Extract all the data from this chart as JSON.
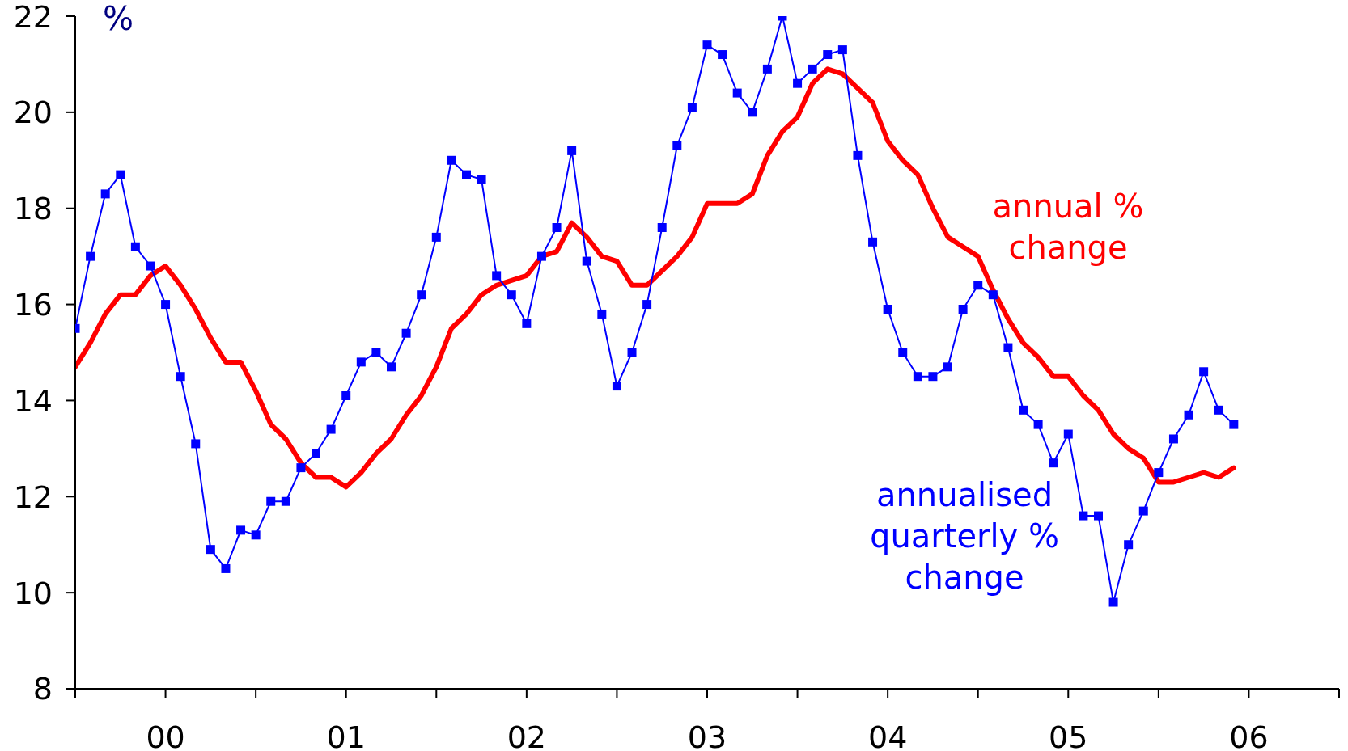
{
  "chart_data": {
    "type": "line",
    "ylabel": "%",
    "x": [
      "2000-01",
      "2000-02",
      "2000-03",
      "2000-04",
      "2000-05",
      "2000-06",
      "2000-07",
      "2000-08",
      "2000-09",
      "2000-10",
      "2000-11",
      "2000-12",
      "2001-01",
      "2001-02",
      "2001-03",
      "2001-04",
      "2001-05",
      "2001-06",
      "2001-07",
      "2001-08",
      "2001-09",
      "2001-10",
      "2001-11",
      "2001-12",
      "2002-01",
      "2002-02",
      "2002-03",
      "2002-04",
      "2002-05",
      "2002-06",
      "2002-07",
      "2002-08",
      "2002-09",
      "2002-10",
      "2002-11",
      "2002-12",
      "2003-01",
      "2003-02",
      "2003-03",
      "2003-04",
      "2003-05",
      "2003-06",
      "2003-07",
      "2003-08",
      "2003-09",
      "2003-10",
      "2003-11",
      "2003-12",
      "2004-01",
      "2004-02",
      "2004-03",
      "2004-04",
      "2004-05",
      "2004-06",
      "2004-07",
      "2004-08",
      "2004-09",
      "2004-10",
      "2004-11",
      "2004-12",
      "2005-01",
      "2005-02",
      "2005-03",
      "2005-04",
      "2005-05",
      "2005-06",
      "2005-07",
      "2005-08",
      "2005-09",
      "2005-10",
      "2005-11",
      "2005-12",
      "2006-01",
      "2006-02",
      "2006-03",
      "2006-04",
      "2006-05",
      "2006-06"
    ],
    "xlim": [
      "2000-01",
      "2007-01"
    ],
    "xticks": [
      {
        "value": "2000-01",
        "label": null
      },
      {
        "value": "2000-07",
        "label": "00"
      },
      {
        "value": "2001-01",
        "label": null
      },
      {
        "value": "2001-07",
        "label": "01"
      },
      {
        "value": "2002-01",
        "label": null
      },
      {
        "value": "2002-07",
        "label": "02"
      },
      {
        "value": "2003-01",
        "label": null
      },
      {
        "value": "2003-07",
        "label": "03"
      },
      {
        "value": "2004-01",
        "label": null
      },
      {
        "value": "2004-07",
        "label": "04"
      },
      {
        "value": "2005-01",
        "label": null
      },
      {
        "value": "2005-07",
        "label": "05"
      },
      {
        "value": "2006-01",
        "label": null
      },
      {
        "value": "2006-07",
        "label": "06"
      },
      {
        "value": "2007-01",
        "label": null
      }
    ],
    "ylim": [
      8,
      22
    ],
    "yticks": [
      8,
      10,
      12,
      14,
      16,
      18,
      20,
      22
    ],
    "series": [
      {
        "name": "annual % change",
        "color": "#ff0000",
        "marker": "none",
        "values": [
          14.7,
          15.2,
          15.8,
          16.2,
          16.2,
          16.6,
          16.8,
          16.4,
          15.9,
          15.3,
          14.8,
          14.8,
          14.2,
          13.5,
          13.2,
          12.7,
          12.4,
          12.4,
          12.2,
          12.5,
          12.9,
          13.2,
          13.7,
          14.1,
          14.7,
          15.5,
          15.8,
          16.2,
          16.4,
          16.5,
          16.6,
          17.0,
          17.1,
          17.7,
          17.4,
          17.0,
          16.9,
          16.4,
          16.4,
          16.7,
          17.0,
          17.4,
          18.1,
          18.1,
          18.1,
          18.3,
          19.1,
          19.6,
          19.9,
          20.6,
          20.9,
          20.8,
          20.5,
          20.2,
          19.4,
          19.0,
          18.7,
          18.0,
          17.4,
          17.2,
          17.0,
          16.3,
          15.7,
          15.2,
          14.9,
          14.5,
          14.5,
          14.1,
          13.8,
          13.3,
          13.0,
          12.8,
          12.3,
          12.3,
          12.4,
          12.5,
          12.4,
          12.6
        ]
      },
      {
        "name": "annualised quarterly % change",
        "color": "#0000ff",
        "marker": "square",
        "values": [
          15.5,
          17.0,
          18.3,
          18.7,
          17.2,
          16.8,
          16.0,
          14.5,
          13.1,
          10.9,
          10.5,
          11.3,
          11.2,
          11.9,
          11.9,
          12.6,
          12.9,
          13.4,
          14.1,
          14.8,
          15.0,
          14.7,
          15.4,
          16.2,
          17.4,
          19.0,
          18.7,
          18.6,
          16.6,
          16.2,
          15.6,
          17.0,
          17.6,
          19.2,
          16.9,
          15.8,
          14.3,
          15.0,
          16.0,
          17.6,
          19.3,
          20.1,
          21.4,
          21.2,
          20.4,
          20.0,
          20.9,
          22.0,
          20.6,
          20.9,
          21.2,
          21.3,
          19.1,
          17.3,
          15.9,
          15.0,
          14.5,
          14.5,
          14.7,
          15.9,
          16.4,
          16.2,
          15.1,
          13.8,
          13.5,
          12.7,
          13.3,
          11.6,
          11.6,
          9.8,
          11.0,
          11.7,
          12.5,
          13.2,
          13.7,
          14.6,
          13.8,
          13.5
        ]
      }
    ]
  }
}
